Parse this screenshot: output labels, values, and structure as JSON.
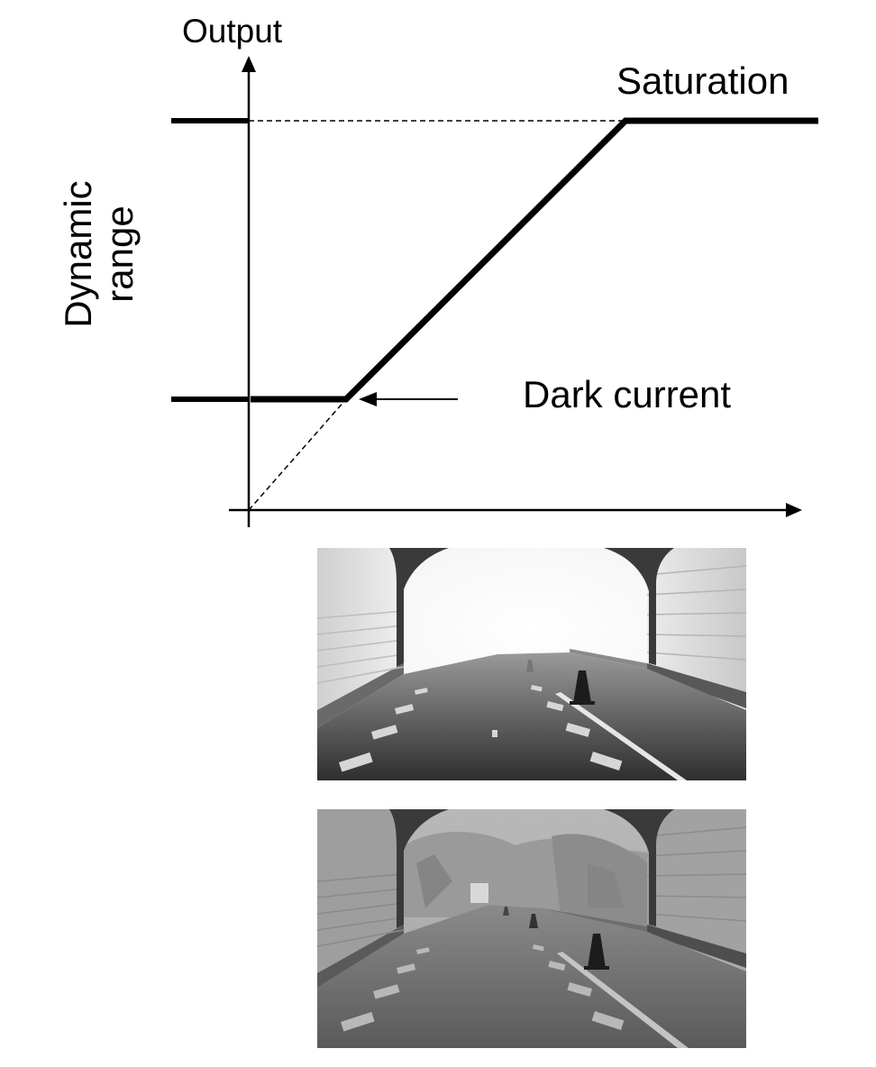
{
  "diagram": {
    "y_axis_label": "Output",
    "dynamic_range_label_line1": "Dynamic",
    "dynamic_range_label_line2": "range",
    "saturation_label": "Saturation",
    "dark_current_label": "Dark current",
    "line_color": "#000000"
  },
  "photos": {
    "top": {
      "tone": "overexposed"
    },
    "bottom": {
      "tone": "balanced"
    }
  }
}
